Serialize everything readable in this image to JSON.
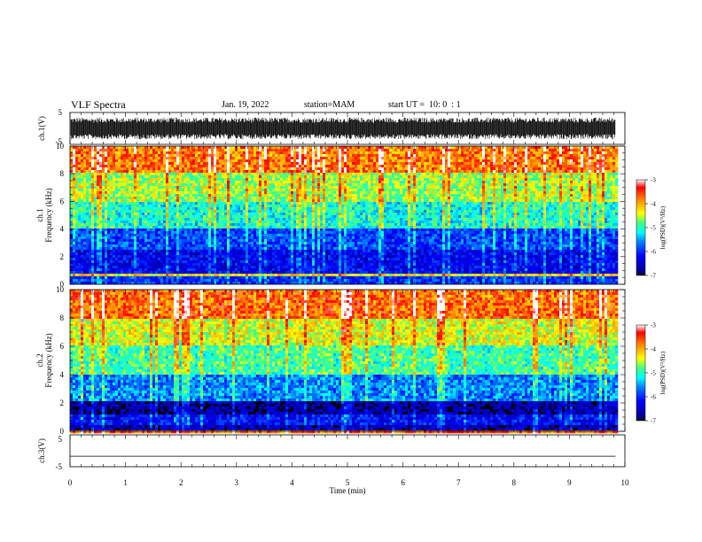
{
  "header": {
    "title": "VLF Spectra",
    "date": "Jan. 19, 2022",
    "station": "station=MAM",
    "start": "start UT =  10: 0  : 1"
  },
  "colors": {
    "colormap": [
      "#000090",
      "#0000ff",
      "#0080ff",
      "#00ffff",
      "#80ff80",
      "#ffff00",
      "#ff8000",
      "#ff0000",
      "#ffffff"
    ]
  },
  "chart_data": [
    {
      "type": "line",
      "name": "waveform-ch1",
      "ylabel": "ch.1(V)",
      "ylim": [
        -5,
        5
      ],
      "yticks": [
        "5",
        "-5"
      ],
      "xlim": [
        0,
        10
      ],
      "description": "dense black waveform filling roughly -3 to +3 V"
    },
    {
      "type": "heatmap",
      "name": "spectrogram-ch1",
      "ylabel_top": "ch.1",
      "ylabel": "Frequency (kHz)",
      "ylim": [
        0,
        10
      ],
      "yticks": [
        "0",
        "2",
        "4",
        "6",
        "8",
        "10"
      ],
      "xlim": [
        0,
        9.83
      ],
      "colorbar": {
        "label": "log(PSD)(V²/Hz)",
        "range": [
          -7,
          -3
        ],
        "ticks": [
          "-7",
          "-6",
          "-5",
          "-4",
          "-3"
        ]
      },
      "bands": [
        {
          "f": [
            0,
            0.5
          ],
          "value": -6.0
        },
        {
          "f": [
            0.5,
            0.7
          ],
          "value": -4.3
        },
        {
          "f": [
            0.7,
            2.5
          ],
          "value": -6.3
        },
        {
          "f": [
            2.5,
            4.0
          ],
          "value": -5.9
        },
        {
          "f": [
            4.0,
            6.0
          ],
          "value": -5.1
        },
        {
          "f": [
            6.0,
            8.0
          ],
          "value": -4.6
        },
        {
          "f": [
            8.0,
            10.0
          ],
          "value": -3.8
        }
      ]
    },
    {
      "type": "heatmap",
      "name": "spectrogram-ch2",
      "ylabel_top": "ch.2",
      "ylabel": "Frequency (kHz)",
      "ylim": [
        0,
        10
      ],
      "yticks": [
        "0",
        "2",
        "4",
        "6",
        "8",
        "10"
      ],
      "xlim": [
        0,
        9.83
      ],
      "colorbar": {
        "label": "log(PSD)(V²/Hz)",
        "range": [
          -7,
          -3
        ],
        "ticks": [
          "-7",
          "-6",
          "-5",
          "-4",
          "-3"
        ]
      },
      "bands": [
        {
          "f": [
            0,
            0.5
          ],
          "value": -6.6
        },
        {
          "f": [
            0.5,
            1.2
          ],
          "value": -6.2
        },
        {
          "f": [
            1.2,
            2.2
          ],
          "value": -6.7
        },
        {
          "f": [
            2.2,
            4.0
          ],
          "value": -5.6
        },
        {
          "f": [
            4.0,
            6.0
          ],
          "value": -4.9
        },
        {
          "f": [
            6.0,
            8.0
          ],
          "value": -4.4
        },
        {
          "f": [
            8.0,
            10.0
          ],
          "value": -3.7
        }
      ]
    },
    {
      "type": "line",
      "name": "waveform-ch3",
      "ylabel": "ch.3(V)",
      "ylim": [
        -5,
        5
      ],
      "yticks": [
        "5",
        "-5"
      ],
      "xlim": [
        0,
        10
      ],
      "xlabel": "Time (min)",
      "xticks": [
        "0",
        "1",
        "2",
        "3",
        "4",
        "5",
        "6",
        "7",
        "8",
        "9",
        "10"
      ],
      "constant_value": -1.7
    }
  ]
}
